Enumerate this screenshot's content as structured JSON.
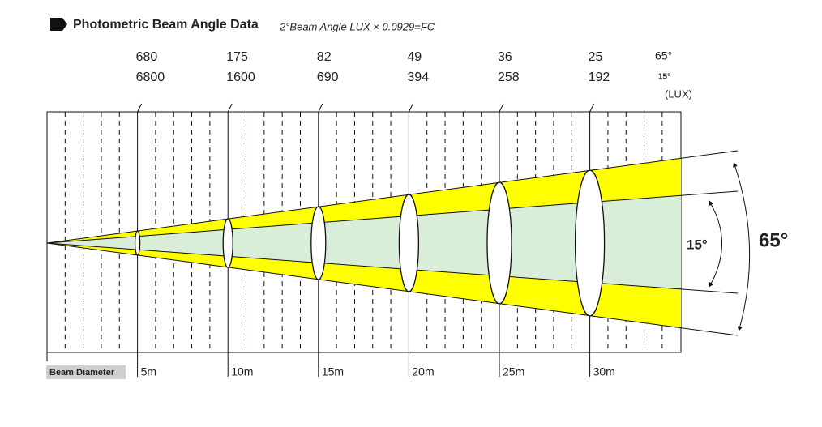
{
  "header": {
    "title": "Photometric Beam Angle Data",
    "subtitle": "2°Beam Angle  LUX × 0.0929=FC"
  },
  "lux_legend": {
    "wide": "65°",
    "narrow": "15°",
    "unit": "(LUX)"
  },
  "distances": [
    {
      "label": "5m",
      "lux_wide": 680,
      "lux_narrow": 6800
    },
    {
      "label": "10m",
      "lux_wide": 175,
      "lux_narrow": 1600
    },
    {
      "label": "15m",
      "lux_wide": 82,
      "lux_narrow": 690
    },
    {
      "label": "20m",
      "lux_wide": 49,
      "lux_narrow": 394
    },
    {
      "label": "25m",
      "lux_wide": 36,
      "lux_narrow": 258
    },
    {
      "label": "30m",
      "lux_wide": 25,
      "lux_narrow": 192
    }
  ],
  "angles": {
    "narrow": "15°",
    "wide": "65°"
  },
  "axis_label": "Beam Diameter"
}
